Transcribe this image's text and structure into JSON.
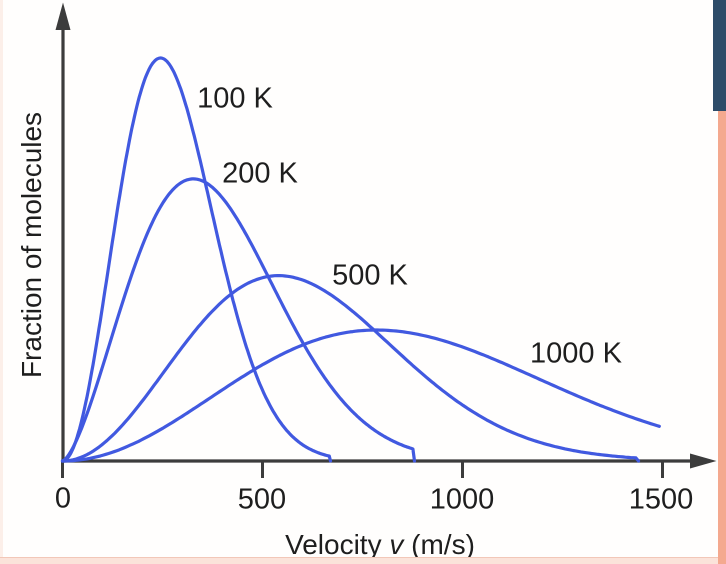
{
  "decorations": {
    "left_strip_color": "#fcefe9",
    "bottom_strip_color": "#fbe3da",
    "right_strip_color": "#f4a98f",
    "right_top_bar_color": "#2e4c69"
  },
  "figure": {
    "ylabel": "Fraction of molecules",
    "xlabel": {
      "prefix": "Velocity ",
      "variable": "v",
      "suffix": " (m/s)"
    },
    "x_tick_labels": [
      "0",
      "500",
      "1000",
      "1500"
    ],
    "curve_labels": [
      "100 K",
      "200 K",
      "500 K",
      "1000 K"
    ],
    "colors": {
      "curve": "#4159e0",
      "axis": "#3c3c3c",
      "text": "#1e1e1e"
    }
  },
  "chart_data": {
    "type": "line",
    "title": "",
    "xlabel": "Velocity v (m/s)",
    "ylabel": "Fraction of molecules",
    "x_ticks": [
      0,
      500,
      1000,
      1500
    ],
    "xlim": [
      0,
      1640
    ],
    "ylim_note": "y axis unlabeled (relative fraction of molecules, 0 at origin)",
    "grid": false,
    "legend_position": "inline-labels-next-to-curves",
    "model": "Maxwell-Boltzmann speed distribution; each curve drawn as y = relative_peak_height * ((v/vp)^2)^a * exp(a*(1-(v/vp)^2))",
    "series": [
      {
        "name": "100 K",
        "temperature_K": 100,
        "peak_velocity_ms": 245,
        "relative_peak_height": 1.0,
        "shape_exponent": 1.0,
        "v_drawn_max_ms": 670,
        "ends_on_axis": true
      },
      {
        "name": "200 K",
        "temperature_K": 200,
        "peak_velocity_ms": 327,
        "relative_peak_height": 0.7,
        "shape_exponent": 0.75,
        "v_drawn_max_ms": 880,
        "ends_on_axis": true
      },
      {
        "name": "500 K",
        "temperature_K": 500,
        "peak_velocity_ms": 540,
        "relative_peak_height": 0.46,
        "shape_exponent": 1.0,
        "v_drawn_max_ms": 1440,
        "ends_on_axis": true
      },
      {
        "name": "1000 K",
        "temperature_K": 1000,
        "peak_velocity_ms": 785,
        "relative_peak_height": 0.325,
        "shape_exponent": 1.0,
        "v_drawn_max_ms": 1492,
        "ends_on_axis": false
      }
    ]
  }
}
